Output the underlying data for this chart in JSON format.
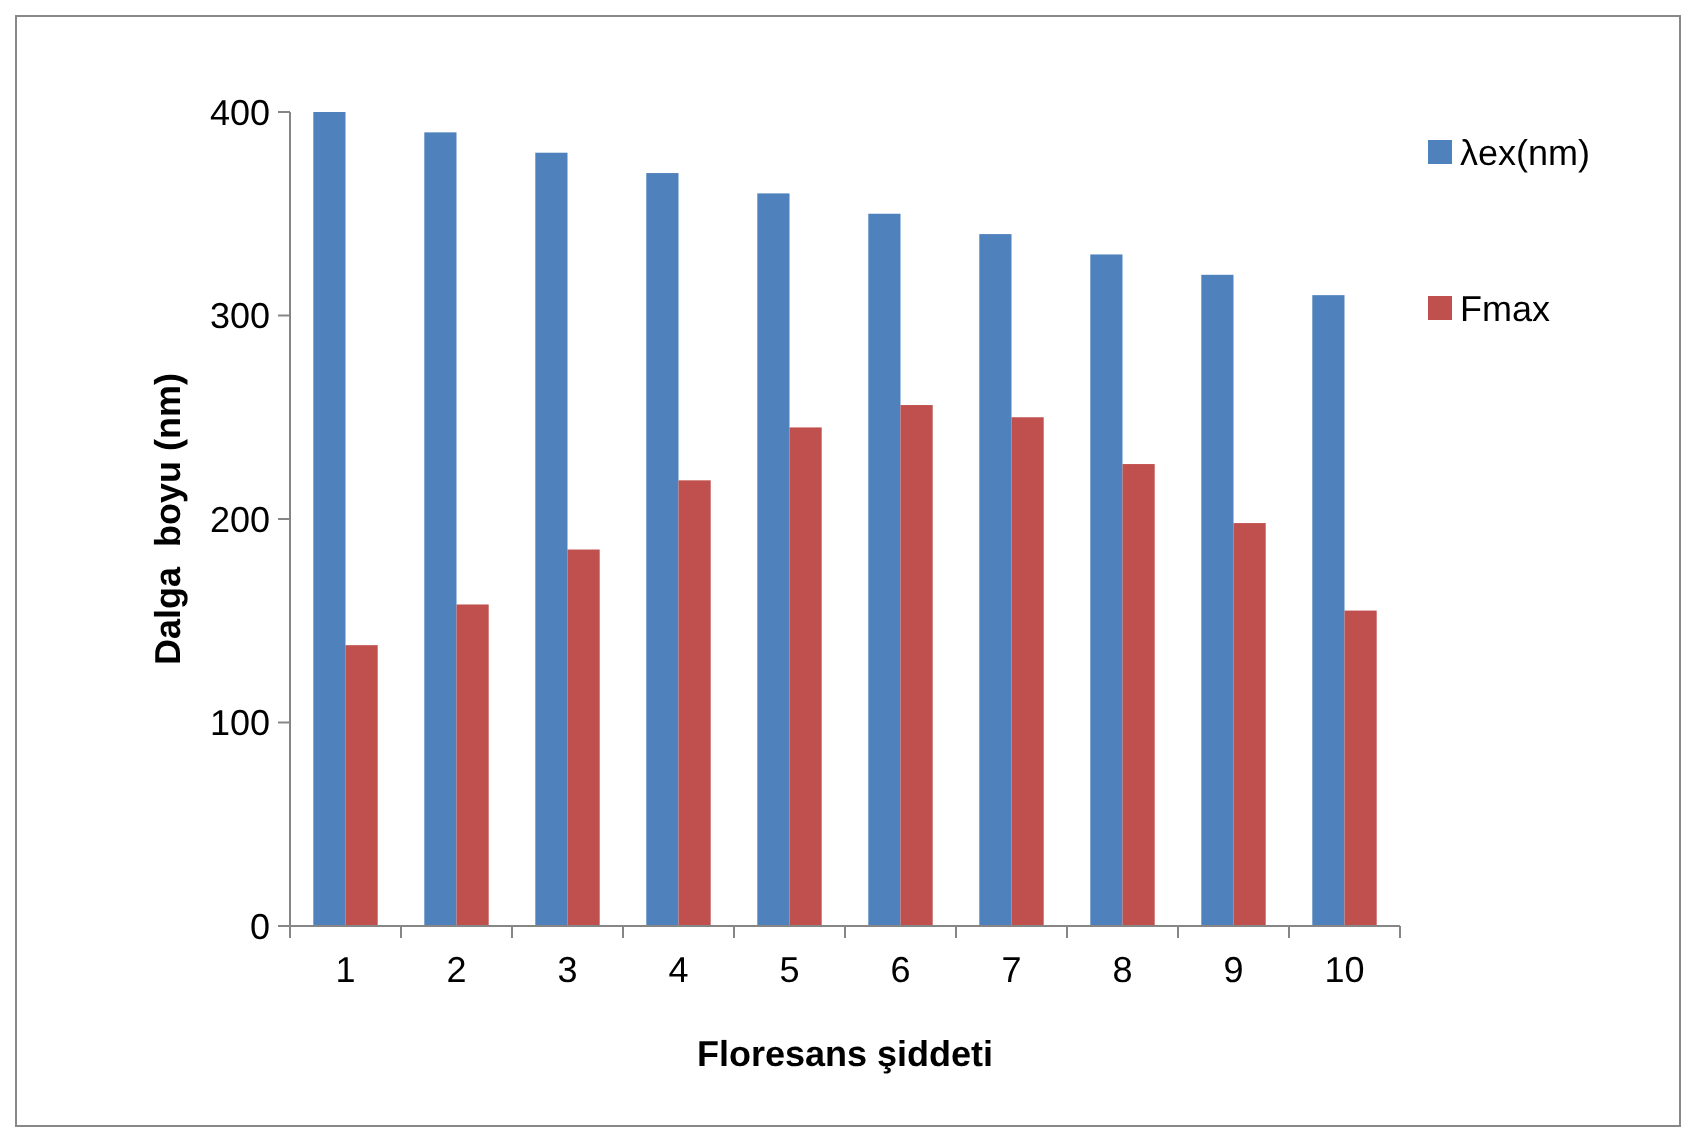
{
  "chart_data": {
    "type": "bar",
    "xlabel": "Floresans şiddeti",
    "ylabel": "Dalga  boyu (nm)",
    "categories": [
      "1",
      "2",
      "3",
      "4",
      "5",
      "6",
      "7",
      "8",
      "9",
      "10"
    ],
    "series": [
      {
        "name": "λex(nm)",
        "color": "#4f81bd",
        "values": [
          400,
          390,
          380,
          370,
          360,
          350,
          340,
          330,
          320,
          310
        ]
      },
      {
        "name": "Fmax",
        "color": "#c0504d",
        "values": [
          138,
          158,
          185,
          219,
          245,
          256,
          250,
          227,
          198,
          155
        ]
      }
    ],
    "ylim": [
      0,
      400
    ],
    "yticks": [
      0,
      100,
      200,
      300,
      400
    ],
    "grid": false,
    "legend": "top right"
  }
}
